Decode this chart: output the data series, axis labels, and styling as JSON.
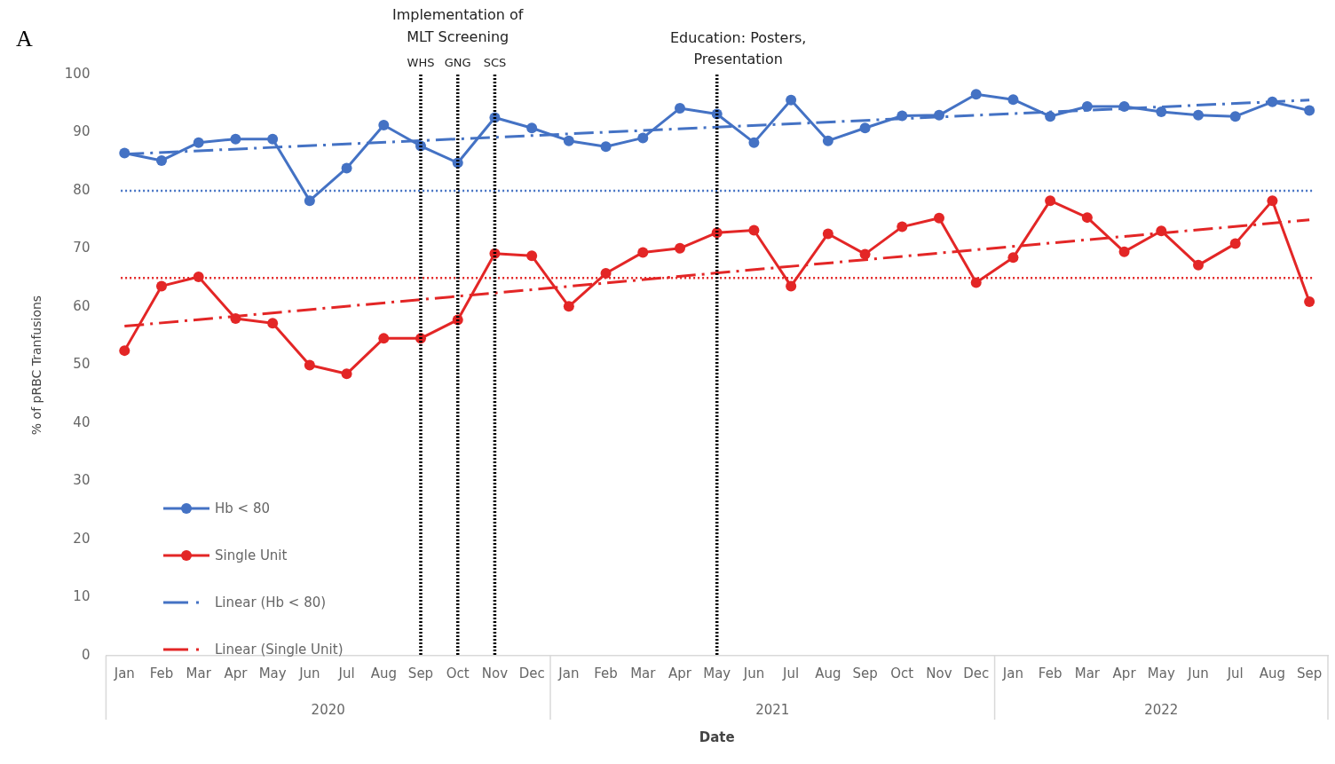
{
  "chart_data": {
    "type": "line",
    "x": [
      "2020-01",
      "2020-02",
      "2020-03",
      "2020-04",
      "2020-05",
      "2020-06",
      "2020-07",
      "2020-08",
      "2020-09",
      "2020-10",
      "2020-11",
      "2020-12",
      "2021-01",
      "2021-02",
      "2021-03",
      "2021-04",
      "2021-05",
      "2021-06",
      "2021-07",
      "2021-08",
      "2021-09",
      "2021-10",
      "2021-11",
      "2021-12",
      "2022-01",
      "2022-02",
      "2022-03",
      "2022-04",
      "2022-05",
      "2022-06",
      "2022-07",
      "2022-08",
      "2022-09"
    ],
    "xlim": [
      "2020-01",
      "2022-09"
    ],
    "xticks": [
      {
        "value": "2020-01",
        "label": "Jan"
      },
      {
        "value": "2020-02",
        "label": "Feb"
      },
      {
        "value": "2020-03",
        "label": "Mar"
      },
      {
        "value": "2020-04",
        "label": "Apr"
      },
      {
        "value": "2020-05",
        "label": "May"
      },
      {
        "value": "2020-06",
        "label": "Jun"
      },
      {
        "value": "2020-07",
        "label": "Jul"
      },
      {
        "value": "2020-08",
        "label": "Aug"
      },
      {
        "value": "2020-09",
        "label": "Sep"
      },
      {
        "value": "2020-10",
        "label": "Oct"
      },
      {
        "value": "2020-11",
        "label": "Nov"
      },
      {
        "value": "2020-12",
        "label": "Dec"
      },
      {
        "value": "2021-01",
        "label": "Jan"
      },
      {
        "value": "2021-02",
        "label": "Feb"
      },
      {
        "value": "2021-03",
        "label": "Mar"
      },
      {
        "value": "2021-04",
        "label": "Apr"
      },
      {
        "value": "2021-05",
        "label": "May"
      },
      {
        "value": "2021-06",
        "label": "Jun"
      },
      {
        "value": "2021-07",
        "label": "Jul"
      },
      {
        "value": "2021-08",
        "label": "Aug"
      },
      {
        "value": "2021-09",
        "label": "Sep"
      },
      {
        "value": "2021-10",
        "label": "Oct"
      },
      {
        "value": "2021-11",
        "label": "Nov"
      },
      {
        "value": "2021-12",
        "label": "Dec"
      },
      {
        "value": "2022-01",
        "label": "Jan"
      },
      {
        "value": "2022-02",
        "label": "Feb"
      },
      {
        "value": "2022-03",
        "label": "Mar"
      },
      {
        "value": "2022-04",
        "label": "Apr"
      },
      {
        "value": "2022-05",
        "label": "May"
      },
      {
        "value": "2022-06",
        "label": "Jun"
      },
      {
        "value": "2022-07",
        "label": "Jul"
      },
      {
        "value": "2022-08",
        "label": "Aug"
      },
      {
        "value": "2022-09",
        "label": "Sep"
      }
    ],
    "xlabel": "Date",
    "ylabel": "% of pRBC Tranfusions",
    "ylim": [
      0,
      100
    ],
    "yticks": [
      0,
      10,
      20,
      30,
      40,
      50,
      60,
      70,
      80,
      90,
      100
    ],
    "marker": "circle",
    "legend": "bottom left",
    "series": [
      {
        "name": "Hb < 80",
        "color": "#4472c4",
        "values": [
          86.5,
          85.2,
          88.3,
          88.9,
          88.9,
          78.3,
          83.9,
          91.3,
          87.7,
          84.8,
          92.6,
          90.8,
          88.6,
          87.6,
          89.1,
          94.2,
          93.2,
          88.3,
          95.6,
          88.6,
          90.8,
          92.9,
          93.0,
          96.6,
          95.7,
          92.8,
          94.5,
          94.5,
          93.6,
          93.0,
          92.8,
          95.3,
          93.8
        ]
      },
      {
        "name": "Single Unit",
        "color": "#e32626",
        "values": [
          52.5,
          63.6,
          65.2,
          58.0,
          57.2,
          50.0,
          48.5,
          54.6,
          54.6,
          57.8,
          69.2,
          68.8,
          60.1,
          65.8,
          69.4,
          70.1,
          72.8,
          73.2,
          63.6,
          72.6,
          69.1,
          73.8,
          75.3,
          64.2,
          68.5,
          78.3,
          75.4,
          69.5,
          73.1,
          67.2,
          70.9,
          78.3,
          60.9
        ]
      },
      {
        "name": "Linear (Hb < 80)",
        "type": "line",
        "color": "#4472c4",
        "marker": "none",
        "line_style": "dashed",
        "x": [
          "2020-01",
          "2022-09"
        ],
        "values": [
          86.3,
          95.6
        ]
      },
      {
        "name": "Linear (Single Unit)",
        "type": "line",
        "color": "#e32626",
        "marker": "none",
        "line_style": "dashed",
        "x": [
          "2020-01",
          "2022-09"
        ],
        "values": [
          56.7,
          75.0
        ]
      }
    ],
    "ref_lines": [
      {
        "axis": "y",
        "value": 80,
        "color": "#4472c4",
        "line_style": "dotted"
      },
      {
        "axis": "y",
        "value": 65,
        "color": "#e32626",
        "line_style": "dotted"
      },
      {
        "axis": "x",
        "value": "2020-09",
        "label": "WHS",
        "color": "#000000",
        "line_style": "dotted"
      },
      {
        "axis": "x",
        "value": "2020-10",
        "label": "GNG",
        "color": "#000000",
        "line_style": "dotted"
      },
      {
        "axis": "x",
        "value": "2020-11",
        "label": "SCS",
        "color": "#000000",
        "line_style": "dotted"
      },
      {
        "axis": "x",
        "value": "2021-05",
        "label": "Education: Posters,\nPresentation",
        "color": "#000000",
        "line_style": "dotted"
      }
    ],
    "annotations": [
      "A",
      "Implementation of\nMLT Screening",
      "2020",
      "2021",
      "2022"
    ]
  }
}
